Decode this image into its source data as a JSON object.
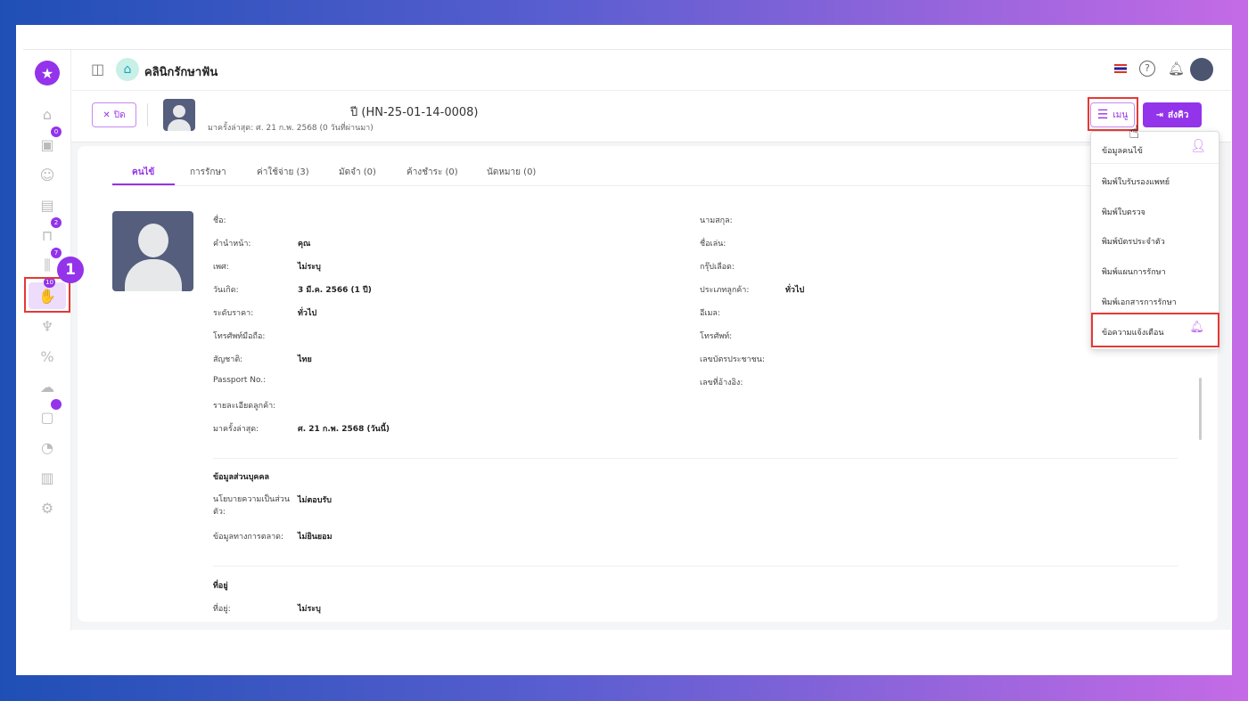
{
  "header": {
    "clinic_name": "คลินิกรักษาฟัน"
  },
  "sidebar": {
    "badges": {
      "calendar": "0",
      "bed": "2",
      "tools": "7",
      "treatment": "10"
    },
    "step_number": "1"
  },
  "patient": {
    "close_label": "ปิด",
    "title_suffix": "ปี (HN-25-01-14-0008)",
    "last_visit_line": "มาครั้งล่าสุด: ศ. 21 ก.พ. 2568 (0 วันที่ผ่านมา)",
    "menu_label": "เมนู",
    "queue_label": "ส่งคิว"
  },
  "tabs": [
    "คนไข้",
    "การรักษา",
    "ค่าใช้จ่าย (3)",
    "มัดจำ (0)",
    "ค้างชำระ (0)",
    "นัดหมาย (0)"
  ],
  "left_fields": [
    [
      "ชื่อ:",
      ""
    ],
    [
      "คำนำหน้า:",
      "คุณ"
    ],
    [
      "เพศ:",
      "ไม่ระบุ"
    ],
    [
      "วันเกิด:",
      "3 มี.ค. 2566 (1 ปี)"
    ],
    [
      "ระดับราคา:",
      "ทั่วไป"
    ],
    [
      "โทรศัพท์มือถือ:",
      ""
    ],
    [
      "สัญชาติ:",
      "ไทย"
    ],
    [
      "Passport No.:",
      ""
    ],
    [
      "รายละเอียดลูกค้า:",
      ""
    ],
    [
      "มาครั้งล่าสุด:",
      "ศ. 21 ก.พ. 2568 (วันนี้)"
    ]
  ],
  "right_fields": [
    [
      "นามสกุล:",
      ""
    ],
    [
      "ชื่อเล่น:",
      ""
    ],
    [
      "กรุ๊ปเลือด:",
      ""
    ],
    [
      "ประเภทลูกค้า:",
      "ทั่วไป"
    ],
    [
      "อีเมล:",
      ""
    ],
    [
      "โทรศัพท์:",
      ""
    ],
    [
      "เลขบัตรประชาชน:",
      ""
    ],
    [
      "เลขที่อ้างอิง:",
      ""
    ]
  ],
  "personal": {
    "heading": "ข้อมูลส่วนบุคคล",
    "privacy_label": "นโยบายความเป็นส่วนตัว:",
    "privacy_value": "ไม่ตอบรับ",
    "marketing_label": "ข้อมูลทางการตลาด:",
    "marketing_value": "ไม่ยินยอม"
  },
  "address": {
    "heading": "ที่อยู่",
    "first_label": "ที่อยู่:",
    "first_value": "ไม่ระบุ"
  },
  "dropdown": [
    "ข้อมูลคนไข้",
    "พิมพ์ใบรับรองแพทย์",
    "พิมพ์ใบตรวจ",
    "พิมพ์บัตรประจำตัว",
    "พิมพ์แผนการรักษา",
    "พิมพ์เอกสารการรักษา",
    "ข้อความแจ้งเตือน"
  ],
  "colors": {
    "accent": "#9333ea",
    "highlight": "#e53935"
  }
}
